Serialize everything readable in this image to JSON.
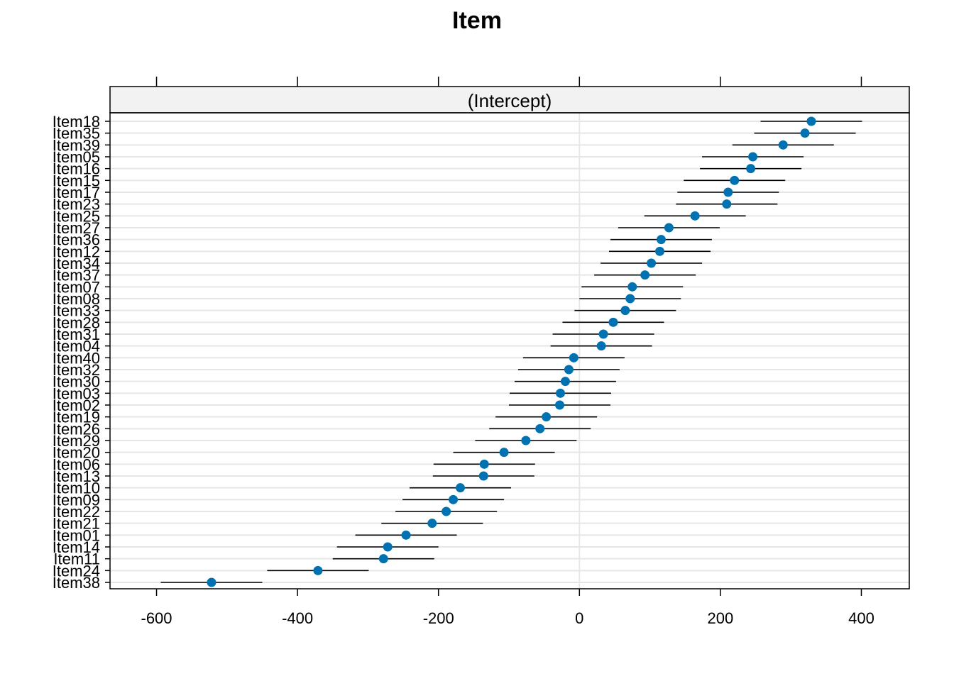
{
  "chart_data": {
    "type": "scatter",
    "title": "Item",
    "panel_label": "(Intercept)",
    "xlabel": "",
    "ylabel": "",
    "xlim": [
      -666,
      468
    ],
    "xticks": [
      -600,
      -400,
      -200,
      0,
      200,
      400
    ],
    "xtick_labels": [
      "-600",
      "-400",
      "-200",
      "0",
      "200",
      "400"
    ],
    "grid": true,
    "reference_line": 0,
    "point_color": "#0072B2",
    "points": [
      {
        "label": "Item18",
        "value": 329,
        "lower": 257,
        "upper": 401
      },
      {
        "label": "Item35",
        "value": 320,
        "lower": 248,
        "upper": 392
      },
      {
        "label": "Item39",
        "value": 289,
        "lower": 217,
        "upper": 361
      },
      {
        "label": "Item05",
        "value": 246,
        "lower": 174,
        "upper": 318
      },
      {
        "label": "Item16",
        "value": 243,
        "lower": 171,
        "upper": 315
      },
      {
        "label": "Item15",
        "value": 220,
        "lower": 148,
        "upper": 292
      },
      {
        "label": "Item17",
        "value": 211,
        "lower": 139,
        "upper": 283
      },
      {
        "label": "Item23",
        "value": 209,
        "lower": 137,
        "upper": 281
      },
      {
        "label": "Item25",
        "value": 164,
        "lower": 92,
        "upper": 236
      },
      {
        "label": "Item27",
        "value": 127,
        "lower": 55,
        "upper": 199
      },
      {
        "label": "Item36",
        "value": 116,
        "lower": 44,
        "upper": 188
      },
      {
        "label": "Item12",
        "value": 114,
        "lower": 42,
        "upper": 186
      },
      {
        "label": "Item34",
        "value": 102,
        "lower": 30,
        "upper": 174
      },
      {
        "label": "Item37",
        "value": 93,
        "lower": 21,
        "upper": 165
      },
      {
        "label": "Item07",
        "value": 75,
        "lower": 3,
        "upper": 147
      },
      {
        "label": "Item08",
        "value": 72,
        "lower": 0,
        "upper": 144
      },
      {
        "label": "Item33",
        "value": 65,
        "lower": -7,
        "upper": 137
      },
      {
        "label": "Item28",
        "value": 48,
        "lower": -24,
        "upper": 120
      },
      {
        "label": "Item31",
        "value": 34,
        "lower": -38,
        "upper": 106
      },
      {
        "label": "Item04",
        "value": 31,
        "lower": -41,
        "upper": 103
      },
      {
        "label": "Item40",
        "value": -8,
        "lower": -80,
        "upper": 64
      },
      {
        "label": "Item32",
        "value": -15,
        "lower": -87,
        "upper": 57
      },
      {
        "label": "Item30",
        "value": -20,
        "lower": -92,
        "upper": 52
      },
      {
        "label": "Item03",
        "value": -27,
        "lower": -99,
        "upper": 45
      },
      {
        "label": "Item02",
        "value": -28,
        "lower": -100,
        "upper": 44
      },
      {
        "label": "Item19",
        "value": -47,
        "lower": -119,
        "upper": 25
      },
      {
        "label": "Item26",
        "value": -56,
        "lower": -128,
        "upper": 16
      },
      {
        "label": "Item29",
        "value": -76,
        "lower": -148,
        "upper": -4
      },
      {
        "label": "Item20",
        "value": -107,
        "lower": -179,
        "upper": -35
      },
      {
        "label": "Item06",
        "value": -135,
        "lower": -207,
        "upper": -63
      },
      {
        "label": "Item13",
        "value": -136,
        "lower": -208,
        "upper": -64
      },
      {
        "label": "Item10",
        "value": -169,
        "lower": -241,
        "upper": -97
      },
      {
        "label": "Item09",
        "value": -179,
        "lower": -251,
        "upper": -107
      },
      {
        "label": "Item22",
        "value": -189,
        "lower": -261,
        "upper": -117
      },
      {
        "label": "Item21",
        "value": -209,
        "lower": -281,
        "upper": -137
      },
      {
        "label": "Item01",
        "value": -246,
        "lower": -318,
        "upper": -174
      },
      {
        "label": "Item14",
        "value": -272,
        "lower": -344,
        "upper": -200
      },
      {
        "label": "Item11",
        "value": -278,
        "lower": -350,
        "upper": -206
      },
      {
        "label": "Item24",
        "value": -371,
        "lower": -443,
        "upper": -299
      },
      {
        "label": "Item38",
        "value": -522,
        "lower": -594,
        "upper": -450
      }
    ]
  }
}
